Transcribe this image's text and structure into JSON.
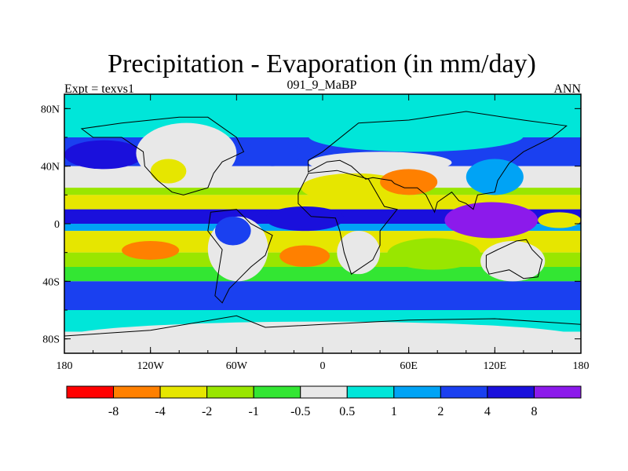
{
  "chart_data": {
    "type": "heatmap",
    "title": "Precipitation - Evaporation (in mm/day)",
    "subtitle_left": "Expt = texvs1",
    "subtitle_center": "091_9_MaBP",
    "subtitle_right": "ANN",
    "x_ticks": [
      "180",
      "120W",
      "60W",
      "0",
      "60E",
      "120E",
      "180"
    ],
    "x_tick_values": [
      -180,
      -120,
      -60,
      0,
      60,
      120,
      180
    ],
    "y_ticks": [
      "80N",
      "40N",
      "0",
      "40S",
      "80S"
    ],
    "y_tick_values": [
      80,
      40,
      0,
      -40,
      -80
    ],
    "xlim": [
      -180,
      180
    ],
    "ylim": [
      -90,
      90
    ],
    "colorbar": {
      "levels": [
        "-8",
        "-4",
        "-2",
        "-1",
        "-0.5",
        "0.5",
        "1",
        "2",
        "4",
        "8"
      ],
      "colors": [
        "#ff0000",
        "#ff8000",
        "#e6e600",
        "#99e600",
        "#33e633",
        "#e8e8e8",
        "#00e6d9",
        "#00a3f5",
        "#1a40f0",
        "#1a10dc",
        "#8c1aeb"
      ]
    },
    "lat_band_classes": [
      {
        "lat_range": [
          60,
          90
        ],
        "class": 6
      },
      {
        "lat_range": [
          40,
          60
        ],
        "class": 8
      },
      {
        "lat_range": [
          25,
          40
        ],
        "class": 5
      },
      {
        "lat_range": [
          20,
          25
        ],
        "class": 3
      },
      {
        "lat_range": [
          10,
          20
        ],
        "class": 2
      },
      {
        "lat_range": [
          0,
          10
        ],
        "class": 9
      },
      {
        "lat_range": [
          -5,
          0
        ],
        "class": 7
      },
      {
        "lat_range": [
          -20,
          -5
        ],
        "class": 2
      },
      {
        "lat_range": [
          -30,
          -20
        ],
        "class": 3
      },
      {
        "lat_range": [
          -40,
          -30
        ],
        "class": 4
      },
      {
        "lat_range": [
          -60,
          -40
        ],
        "class": 8
      },
      {
        "lat_range": [
          -75,
          -60
        ],
        "class": 6
      },
      {
        "lat_range": [
          -90,
          -75
        ],
        "class": 5
      }
    ],
    "regions": [
      {
        "name": "north-pacific-storm-track",
        "lon": [
          -180,
          -125
        ],
        "lat": [
          38,
          58
        ],
        "class": 9
      },
      {
        "name": "north-atlantic-storm-track",
        "lon": [
          -55,
          -15
        ],
        "lat": [
          40,
          58
        ],
        "class": 8
      },
      {
        "name": "arctic-cyan",
        "lon": [
          -180,
          180
        ],
        "lat": [
          70,
          82
        ],
        "class": 6
      },
      {
        "name": "north-america",
        "lon": [
          -130,
          -60
        ],
        "lat": [
          28,
          70
        ],
        "class": 5
      },
      {
        "name": "north-america-west-dry",
        "lon": [
          -120,
          -95
        ],
        "lat": [
          28,
          45
        ],
        "class": 2
      },
      {
        "name": "eurasia-north",
        "lon": [
          -10,
          140
        ],
        "lat": [
          50,
          72
        ],
        "class": 6
      },
      {
        "name": "eurasia-mid",
        "lon": [
          -10,
          90
        ],
        "lat": [
          35,
          50
        ],
        "class": 5
      },
      {
        "name": "sahara-arabia",
        "lon": [
          -15,
          60
        ],
        "lat": [
          15,
          35
        ],
        "class": 2
      },
      {
        "name": "central-asia-dry",
        "lon": [
          40,
          80
        ],
        "lat": [
          20,
          38
        ],
        "class": 1
      },
      {
        "name": "east-asia",
        "lon": [
          100,
          140
        ],
        "lat": [
          20,
          45
        ],
        "class": 7
      },
      {
        "name": "maritime-continent",
        "lon": [
          85,
          150
        ],
        "lat": [
          -10,
          15
        ],
        "class": 10
      },
      {
        "name": "equatorial-atlantic",
        "lon": [
          -40,
          15
        ],
        "lat": [
          -5,
          12
        ],
        "class": 9
      },
      {
        "name": "south-america",
        "lon": [
          -80,
          -38
        ],
        "lat": [
          -40,
          5
        ],
        "class": 5
      },
      {
        "name": "amazon-wet",
        "lon": [
          -75,
          -50
        ],
        "lat": [
          -15,
          5
        ],
        "class": 8
      },
      {
        "name": "africa-south",
        "lon": [
          10,
          40
        ],
        "lat": [
          -35,
          -5
        ],
        "class": 5
      },
      {
        "name": "south-atlantic-dry-core",
        "lon": [
          -30,
          5
        ],
        "lat": [
          -30,
          -15
        ],
        "class": 1
      },
      {
        "name": "south-pacific-dry-core",
        "lon": [
          -140,
          -100
        ],
        "lat": [
          -25,
          -12
        ],
        "class": 1
      },
      {
        "name": "australia",
        "lon": [
          110,
          155
        ],
        "lat": [
          -40,
          -12
        ],
        "class": 5
      },
      {
        "name": "indian-ocean-south",
        "lon": [
          45,
          110
        ],
        "lat": [
          -32,
          -10
        ],
        "class": 3
      },
      {
        "name": "east-pacific-equatorial",
        "lon": [
          150,
          180
        ],
        "lat": [
          -3,
          8
        ],
        "class": 2
      },
      {
        "name": "antarctica",
        "lon": [
          -180,
          180
        ],
        "lat": [
          -90,
          -68
        ],
        "class": 5
      }
    ],
    "continent_outlines": [
      {
        "name": "north-america",
        "points": [
          [
            -168,
            66
          ],
          [
            -140,
            70
          ],
          [
            -100,
            74
          ],
          [
            -80,
            74
          ],
          [
            -60,
            60
          ],
          [
            -55,
            50
          ],
          [
            -70,
            43
          ],
          [
            -76,
            35
          ],
          [
            -80,
            25
          ],
          [
            -97,
            20
          ],
          [
            -105,
            22
          ],
          [
            -115,
            30
          ],
          [
            -124,
            40
          ],
          [
            -125,
            50
          ],
          [
            -140,
            60
          ],
          [
            -160,
            60
          ]
        ]
      },
      {
        "name": "south-america",
        "points": [
          [
            -78,
            8
          ],
          [
            -60,
            10
          ],
          [
            -50,
            0
          ],
          [
            -35,
            -8
          ],
          [
            -40,
            -22
          ],
          [
            -50,
            -30
          ],
          [
            -58,
            -38
          ],
          [
            -65,
            -45
          ],
          [
            -70,
            -55
          ],
          [
            -75,
            -50
          ],
          [
            -72,
            -30
          ],
          [
            -70,
            -18
          ],
          [
            -80,
            -5
          ]
        ]
      },
      {
        "name": "eurasia",
        "points": [
          [
            -10,
            36
          ],
          [
            -10,
            44
          ],
          [
            0,
            50
          ],
          [
            10,
            58
          ],
          [
            25,
            70
          ],
          [
            60,
            72
          ],
          [
            100,
            78
          ],
          [
            140,
            72
          ],
          [
            170,
            68
          ],
          [
            160,
            60
          ],
          [
            140,
            50
          ],
          [
            130,
            42
          ],
          [
            122,
            30
          ],
          [
            120,
            22
          ],
          [
            108,
            20
          ],
          [
            105,
            10
          ],
          [
            100,
            14
          ],
          [
            95,
            16
          ],
          [
            90,
            22
          ],
          [
            80,
            15
          ],
          [
            78,
            8
          ],
          [
            72,
            20
          ],
          [
            66,
            25
          ],
          [
            57,
            25
          ],
          [
            50,
            28
          ],
          [
            48,
            30
          ],
          [
            35,
            32
          ],
          [
            30,
            31
          ],
          [
            20,
            40
          ],
          [
            12,
            44
          ],
          [
            3,
            43
          ]
        ]
      },
      {
        "name": "africa",
        "points": [
          [
            -17,
            21
          ],
          [
            -10,
            35
          ],
          [
            10,
            37
          ],
          [
            32,
            31
          ],
          [
            43,
            12
          ],
          [
            52,
            10
          ],
          [
            40,
            -5
          ],
          [
            40,
            -15
          ],
          [
            35,
            -25
          ],
          [
            20,
            -35
          ],
          [
            15,
            -20
          ],
          [
            12,
            -5
          ],
          [
            9,
            4
          ],
          [
            -8,
            5
          ],
          [
            -17,
            14
          ]
        ]
      },
      {
        "name": "australia",
        "points": [
          [
            114,
            -22
          ],
          [
            122,
            -18
          ],
          [
            135,
            -12
          ],
          [
            142,
            -11
          ],
          [
            146,
            -18
          ],
          [
            153,
            -25
          ],
          [
            150,
            -37
          ],
          [
            140,
            -38
          ],
          [
            130,
            -32
          ],
          [
            116,
            -35
          ],
          [
            114,
            -30
          ]
        ]
      },
      {
        "name": "antarctica",
        "points": [
          [
            -180,
            -78
          ],
          [
            -120,
            -74
          ],
          [
            -60,
            -64
          ],
          [
            -40,
            -72
          ],
          [
            0,
            -70
          ],
          [
            60,
            -67
          ],
          [
            120,
            -66
          ],
          [
            180,
            -70
          ],
          [
            180,
            -90
          ],
          [
            -180,
            -90
          ]
        ]
      }
    ]
  }
}
